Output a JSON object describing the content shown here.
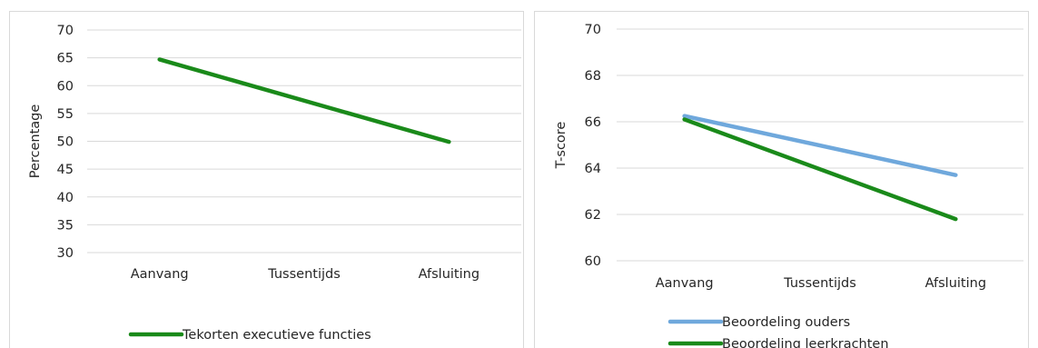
{
  "chart_data": [
    {
      "type": "line",
      "categories": [
        "Aanvang",
        "Tussentijds",
        "Afsluiting"
      ],
      "series": [
        {
          "name": "Tekorten executieve functies",
          "values": [
            64.7,
            null,
            49.9
          ],
          "color": "#1a8a1a"
        }
      ],
      "xlabel": "",
      "ylabel": "Percentage",
      "ylim": [
        30,
        70
      ],
      "yticks": [
        30,
        35,
        40,
        45,
        50,
        55,
        60,
        65,
        70
      ],
      "grid": true,
      "legend_position": "bottom"
    },
    {
      "type": "line",
      "categories": [
        "Aanvang",
        "Tussentijds",
        "Afsluiting"
      ],
      "series": [
        {
          "name": "Beoordeling ouders",
          "values": [
            66.25,
            null,
            63.7
          ],
          "color": "#6fa8dc"
        },
        {
          "name": "Beoordeling leerkrachten",
          "values": [
            66.1,
            null,
            61.8
          ],
          "color": "#1a8a1a"
        }
      ],
      "xlabel": "",
      "ylabel": "T-score",
      "ylim": [
        60,
        70
      ],
      "yticks": [
        60,
        62,
        64,
        66,
        68,
        70
      ],
      "grid": true,
      "legend_position": "bottom"
    }
  ]
}
